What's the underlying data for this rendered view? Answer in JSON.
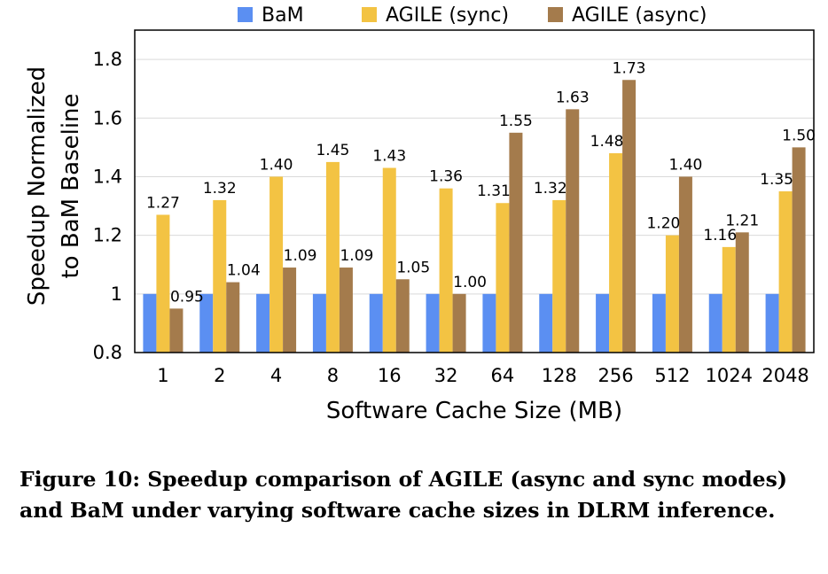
{
  "chart_data": {
    "type": "bar",
    "categories": [
      "1",
      "2",
      "4",
      "8",
      "16",
      "32",
      "64",
      "128",
      "256",
      "512",
      "1024",
      "2048"
    ],
    "series": [
      {
        "name": "BaM",
        "color": "#5B8FF2",
        "values": [
          1,
          1,
          1,
          1,
          1,
          1,
          1,
          1,
          1,
          1,
          1,
          1
        ],
        "labels": [
          "",
          "",
          "",
          "",
          "",
          "",
          "",
          "",
          "",
          "",
          "",
          ""
        ]
      },
      {
        "name": "AGILE (sync)",
        "color": "#F3C343",
        "values": [
          1.27,
          1.32,
          1.4,
          1.45,
          1.43,
          1.36,
          1.31,
          1.32,
          1.48,
          1.2,
          1.16,
          1.35
        ],
        "labels": [
          "1.27",
          "1.32",
          "1.40",
          "1.45",
          "1.43",
          "1.36",
          "1.31",
          "1.32",
          "1.48",
          "1.20",
          "1.16",
          "1.35"
        ]
      },
      {
        "name": "AGILE (async)",
        "color": "#A47B4C",
        "values": [
          0.95,
          1.04,
          1.09,
          1.09,
          1.05,
          1.0,
          1.55,
          1.63,
          1.73,
          1.4,
          1.21,
          1.5
        ],
        "labels": [
          "0.95",
          "1.04",
          "1.09",
          "1.09",
          "1.05",
          "1.00",
          "1.55",
          "1.63",
          "1.73",
          "1.40",
          "1.21",
          "1.50"
        ]
      }
    ],
    "yticks": [
      "0.8",
      "1",
      "1.2",
      "1.4",
      "1.6",
      "1.8"
    ],
    "ylim": [
      0.8,
      1.9
    ],
    "xlabel": "Software Cache Size (MB)",
    "ylabel_lines": [
      "Speedup Normalized",
      "to BaM Baseline"
    ],
    "grid": true,
    "legend_position": "top"
  },
  "caption": "Figure 10: Speedup comparison of AGILE (async and sync modes) and BaM under varying software cache sizes in DLRM inference."
}
